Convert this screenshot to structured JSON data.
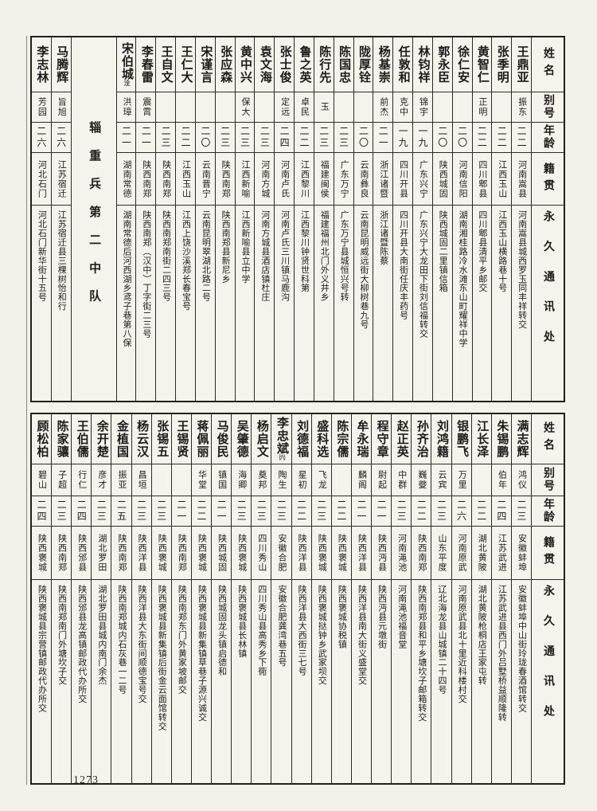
{
  "page_number": "1273",
  "section_label": "辎重兵第二中队",
  "column_headers": {
    "name": "姓名",
    "alias": "别号",
    "age": "年龄",
    "native": "籍贯",
    "address": "永久通讯处"
  },
  "top_table": {
    "entries": [
      {
        "name": "王鼎亚",
        "alias": "振东",
        "age": "二二",
        "native": "河南嵩县",
        "address": "河南嵩县城西罗玉同丰祥转交"
      },
      {
        "name": "张季明",
        "alias": "",
        "age": "二二",
        "native": "江西玉山",
        "address": "江西玉山横路巷十号"
      },
      {
        "name": "黄智仁",
        "alias": "正明",
        "age": "二二",
        "native": "四川郫县",
        "address": "四川郫县清平乡邮交"
      },
      {
        "name": "徐仁安",
        "alias": "",
        "age": "二〇",
        "native": "河南信阳",
        "address": "湖南湘桂路冷水滩东山町耀祥中学"
      },
      {
        "name": "郭永臣",
        "alias": "",
        "age": "二〇",
        "native": "陕西城固",
        "address": "陕西城固二里镇信箱"
      },
      {
        "name": "林钧祥",
        "alias": "锦宇",
        "age": "一九",
        "native": "广东兴宁",
        "address": "广东兴宁大龙田下街刘信福转交"
      },
      {
        "name": "任敦和",
        "alias": "克中",
        "age": "一九",
        "native": "四川开县",
        "address": "四川开县大南街任庆丰药号"
      },
      {
        "name": "杨基崇",
        "alias": "前杰",
        "age": "二一",
        "native": "浙江诸暨",
        "address": "浙江诸暨陈蔡"
      },
      {
        "name": "陇厚铨",
        "alias": "",
        "age": "二〇",
        "native": "云南彝良",
        "address": "云南昆明威远街大柳树巷九号"
      },
      {
        "name": "陈国忠",
        "alias": "",
        "age": "二三",
        "native": "广东万宁",
        "address": "广东万宁县城恒兴号转"
      },
      {
        "name": "陈行先",
        "alias": "玉",
        "age": "二三",
        "native": "福建闽侯",
        "address": "福建福州北门外义井乡"
      },
      {
        "name": "鲁之英",
        "alias": "卓民",
        "age": "二二",
        "native": "江西黎川",
        "address": "江西黎川钟贤世科第"
      },
      {
        "name": "张士俊",
        "alias": "定远",
        "age": "二四",
        "native": "河南卢氏",
        "address": "河南卢氏三川镇马鹿沟"
      },
      {
        "name": "袁文海",
        "alias": "",
        "age": "二三",
        "native": "河南方城",
        "address": "河南方城县酒店镇杜庄"
      },
      {
        "name": "黄中兴",
        "alias": "保大",
        "age": "二三",
        "native": "江西新喻",
        "address": "江西新喻县立中学"
      },
      {
        "name": "张应森",
        "alias": "",
        "age": "二三",
        "native": "陕西南郑",
        "address": "陕西南郑县新尼乡"
      },
      {
        "name": "宋谨言",
        "alias": "",
        "age": "二〇",
        "native": "云南晋宁",
        "address": "云南昆明翠湖北路二号"
      },
      {
        "name": "王仁大",
        "alias": "",
        "age": "二二",
        "native": "江西玉山",
        "address": "江西上饶沙溪郑长春宝号"
      },
      {
        "name": "王自文",
        "alias": "",
        "age": "二三",
        "native": "陕西南郑",
        "address": "陕西南郑南街二四三号"
      },
      {
        "name": "李春雷",
        "alias": "震霄",
        "age": "二一",
        "native": "陕西南郑",
        "address": "陕西南郑（汉中）丁字街二三号"
      },
      {
        "name": "宋伯城",
        "note": "洤",
        "alias": "洪璋",
        "age": "二一",
        "native": "湖南常德",
        "address": "湖南常德后河西湖乡鸢子巷第八保"
      },
      {
        "section": true
      },
      {
        "name": "马腾辉",
        "alias": "旨旭",
        "age": "二六",
        "native": "江苏宿迁",
        "address": "江苏宿迁县三棵树怡和行"
      },
      {
        "name": "李志林",
        "alias": "芳园",
        "age": "二六",
        "native": "河北石门",
        "address": "河北石门新华街十五号"
      }
    ]
  },
  "bottom_table": {
    "entries": [
      {
        "name": "满志辉",
        "alias": "鸿仪",
        "age": "二三",
        "native": "安徽蚌埠",
        "address": "安徽蚌埠中山街玲珑春酒馆转交"
      },
      {
        "name": "朱锡鹏",
        "alias": "伯年",
        "age": "二四",
        "native": "江苏武进",
        "address": "江苏武进县西门外吕墅桥益顺隆转"
      },
      {
        "name": "江长泽",
        "alias": "",
        "age": "二二",
        "native": "湖北黄陂",
        "address": "湖北黄陂枪桐店王家屯转"
      },
      {
        "name": "银鹏飞",
        "alias": "万里",
        "age": "二六",
        "native": "河南原武",
        "address": "河南原武县北十里近科楼村交"
      },
      {
        "name": "刘鸿籍",
        "alias": "云宾",
        "age": "二三",
        "native": "山东平度",
        "address": "辽北海龙县山城镇二十四号"
      },
      {
        "name": "孙齐治",
        "alias": "巍夔",
        "age": "二二",
        "native": "陕西南郑",
        "address": "陕西南郑县和平乡塘坎子邮箱转交"
      },
      {
        "name": "赵正英",
        "alias": "中群",
        "age": "二三",
        "native": "河南渑池",
        "address": "河南渑池福音堂"
      },
      {
        "name": "程守章",
        "alias": "尉起",
        "age": "二一",
        "native": "陕西沔县",
        "address": "陕西沔县元墩街"
      },
      {
        "name": "牟永瑞",
        "alias": "麟阁",
        "age": "二一",
        "native": "陕西洋县",
        "address": "陕西洋县南大街义盛堂交"
      },
      {
        "name": "陈宗儒",
        "alias": "",
        "age": "二二",
        "native": "陕西褒城",
        "address": "陕西褒城协税镇"
      },
      {
        "name": "盛科选",
        "alias": "飞龙",
        "age": "二三",
        "native": "陕西褒城",
        "address": "陕西褒城挞钟乡武家坝交"
      },
      {
        "name": "刘德福",
        "alias": "星初",
        "age": "二二",
        "native": "陕西洋县",
        "address": "陕西洋县大西街三七号"
      },
      {
        "name": "李忠斌",
        "note": "㈥",
        "alias": "陶生",
        "age": "二三",
        "native": "安徽合肥",
        "address": "安徽合肥龚湾巷五号"
      },
      {
        "name": "杨启文",
        "alias": "奠邦",
        "age": "二三",
        "native": "四川秀山",
        "address": "四川秀山县高秀乡下衕"
      },
      {
        "name": "吴肇德",
        "alias": "海卿",
        "age": "二三",
        "native": "陕西褒城",
        "address": "陕西褒城县长林镇"
      },
      {
        "name": "马俊民",
        "alias": "镇国",
        "age": "二一",
        "native": "陕西城固",
        "address": "陕西城固龙头镇启德和"
      },
      {
        "name": "蒋佩丽",
        "alias": "华堂",
        "age": "二二",
        "native": "陕西褒城",
        "address": "陕西褒城县新集镇草巷子源兴诚交"
      },
      {
        "name": "王锡贤",
        "alias": "",
        "age": "二一",
        "native": "陕西南郑",
        "address": "陕西南郑东门外黄家坡邮交"
      },
      {
        "name": "张锡五",
        "alias": "",
        "age": "二三",
        "native": "陕西褒城",
        "address": "陕西褒城县新集镇后街金云面馆转交"
      },
      {
        "name": "杨云汉",
        "alias": "昌垣",
        "age": "二三",
        "native": "陕西洋县",
        "address": "陕西洋县大东街间顺德宝号交"
      },
      {
        "name": "金植国",
        "alias": "振亚",
        "age": "二五",
        "native": "陕西南郑",
        "address": "陕西南郑城内石灰巷一二号"
      },
      {
        "name": "余开楚",
        "alias": "彦才",
        "age": "二三",
        "native": "湖北罗田",
        "address": "湖北罗田县城内南门余杰"
      },
      {
        "name": "王伯儒",
        "alias": "行仁",
        "age": "二四",
        "native": "陕西邠县",
        "address": "陕西邠县龙高镇邮政代办所交"
      },
      {
        "name": "陈家骧",
        "alias": "子超",
        "age": "二三",
        "native": "陕西南郑",
        "address": "陕西南郑南门外塘坎子交"
      },
      {
        "name": "顾松柏",
        "alias": "碧山",
        "age": "二四",
        "native": "陕西褒城",
        "address": "陕西褒城县宗营镇邮政代办所交"
      }
    ]
  }
}
